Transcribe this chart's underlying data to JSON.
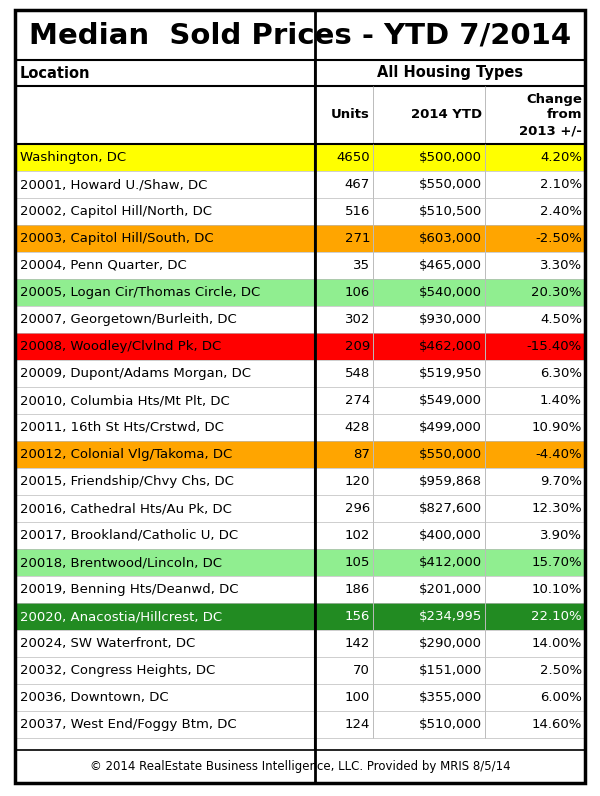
{
  "title": "Median  Sold Prices - YTD 7/2014",
  "col_header_1": "Location",
  "col_header_2": "All Housing Types",
  "sub_headers": [
    "Units",
    "2014 YTD",
    "Change\nfrom\n2013 +/-"
  ],
  "footer": "© 2014 RealEstate Business Intelligence, LLC. Provided by MRIS 8/5/14",
  "rows": [
    {
      "location": "Washington, DC",
      "units": "4650",
      "ytd": "$500,000",
      "change": "4.20%",
      "bg": "#FFFF00"
    },
    {
      "location": "20001, Howard U./Shaw, DC",
      "units": "467",
      "ytd": "$550,000",
      "change": "2.10%",
      "bg": "#FFFFFF"
    },
    {
      "location": "20002, Capitol Hill/North, DC",
      "units": "516",
      "ytd": "$510,500",
      "change": "2.40%",
      "bg": "#FFFFFF"
    },
    {
      "location": "20003, Capitol Hill/South, DC",
      "units": "271",
      "ytd": "$603,000",
      "change": "-2.50%",
      "bg": "#FFA500"
    },
    {
      "location": "20004, Penn Quarter, DC",
      "units": "35",
      "ytd": "$465,000",
      "change": "3.30%",
      "bg": "#FFFFFF"
    },
    {
      "location": "20005, Logan Cir/Thomas Circle, DC",
      "units": "106",
      "ytd": "$540,000",
      "change": "20.30%",
      "bg": "#90EE90"
    },
    {
      "location": "20007, Georgetown/Burleith, DC",
      "units": "302",
      "ytd": "$930,000",
      "change": "4.50%",
      "bg": "#FFFFFF"
    },
    {
      "location": "20008, Woodley/Clvlnd Pk, DC",
      "units": "209",
      "ytd": "$462,000",
      "change": "-15.40%",
      "bg": "#FF0000"
    },
    {
      "location": "20009, Dupont/Adams Morgan, DC",
      "units": "548",
      "ytd": "$519,950",
      "change": "6.30%",
      "bg": "#FFFFFF"
    },
    {
      "location": "20010, Columbia Hts/Mt Plt, DC",
      "units": "274",
      "ytd": "$549,000",
      "change": "1.40%",
      "bg": "#FFFFFF"
    },
    {
      "location": "20011, 16th St Hts/Crstwd, DC",
      "units": "428",
      "ytd": "$499,000",
      "change": "10.90%",
      "bg": "#FFFFFF"
    },
    {
      "location": "20012, Colonial Vlg/Takoma, DC",
      "units": "87",
      "ytd": "$550,000",
      "change": "-4.40%",
      "bg": "#FFA500"
    },
    {
      "location": "20015, Friendship/Chvy Chs, DC",
      "units": "120",
      "ytd": "$959,868",
      "change": "9.70%",
      "bg": "#FFFFFF"
    },
    {
      "location": "20016, Cathedral Hts/Au Pk, DC",
      "units": "296",
      "ytd": "$827,600",
      "change": "12.30%",
      "bg": "#FFFFFF"
    },
    {
      "location": "20017, Brookland/Catholic U, DC",
      "units": "102",
      "ytd": "$400,000",
      "change": "3.90%",
      "bg": "#FFFFFF"
    },
    {
      "location": "20018, Brentwood/Lincoln, DC",
      "units": "105",
      "ytd": "$412,000",
      "change": "15.70%",
      "bg": "#90EE90"
    },
    {
      "location": "20019, Benning Hts/Deanwd, DC",
      "units": "186",
      "ytd": "$201,000",
      "change": "10.10%",
      "bg": "#FFFFFF"
    },
    {
      "location": "20020, Anacostia/Hillcrest, DC",
      "units": "156",
      "ytd": "$234,995",
      "change": "22.10%",
      "bg": "#228B22"
    },
    {
      "location": "20024, SW Waterfront, DC",
      "units": "142",
      "ytd": "$290,000",
      "change": "14.00%",
      "bg": "#FFFFFF"
    },
    {
      "location": "20032, Congress Heights, DC",
      "units": "70",
      "ytd": "$151,000",
      "change": "2.50%",
      "bg": "#FFFFFF"
    },
    {
      "location": "20036, Downtown, DC",
      "units": "100",
      "ytd": "$355,000",
      "change": "6.00%",
      "bg": "#FFFFFF"
    },
    {
      "location": "20037, West End/Foggy Btm, DC",
      "units": "124",
      "ytd": "$510,000",
      "change": "14.60%",
      "bg": "#FFFFFF"
    }
  ],
  "title_fontsize": 21,
  "header_fontsize": 10.5,
  "subheader_fontsize": 9.5,
  "row_fontsize": 9.5,
  "footer_fontsize": 8.5,
  "outer_border_color": "#000000",
  "inner_divider_color": "#000000",
  "grid_color": "#BBBBBB",
  "bg_white": "#FFFFFF",
  "text_dark": "#000000",
  "text_light": "#FFFFFF"
}
